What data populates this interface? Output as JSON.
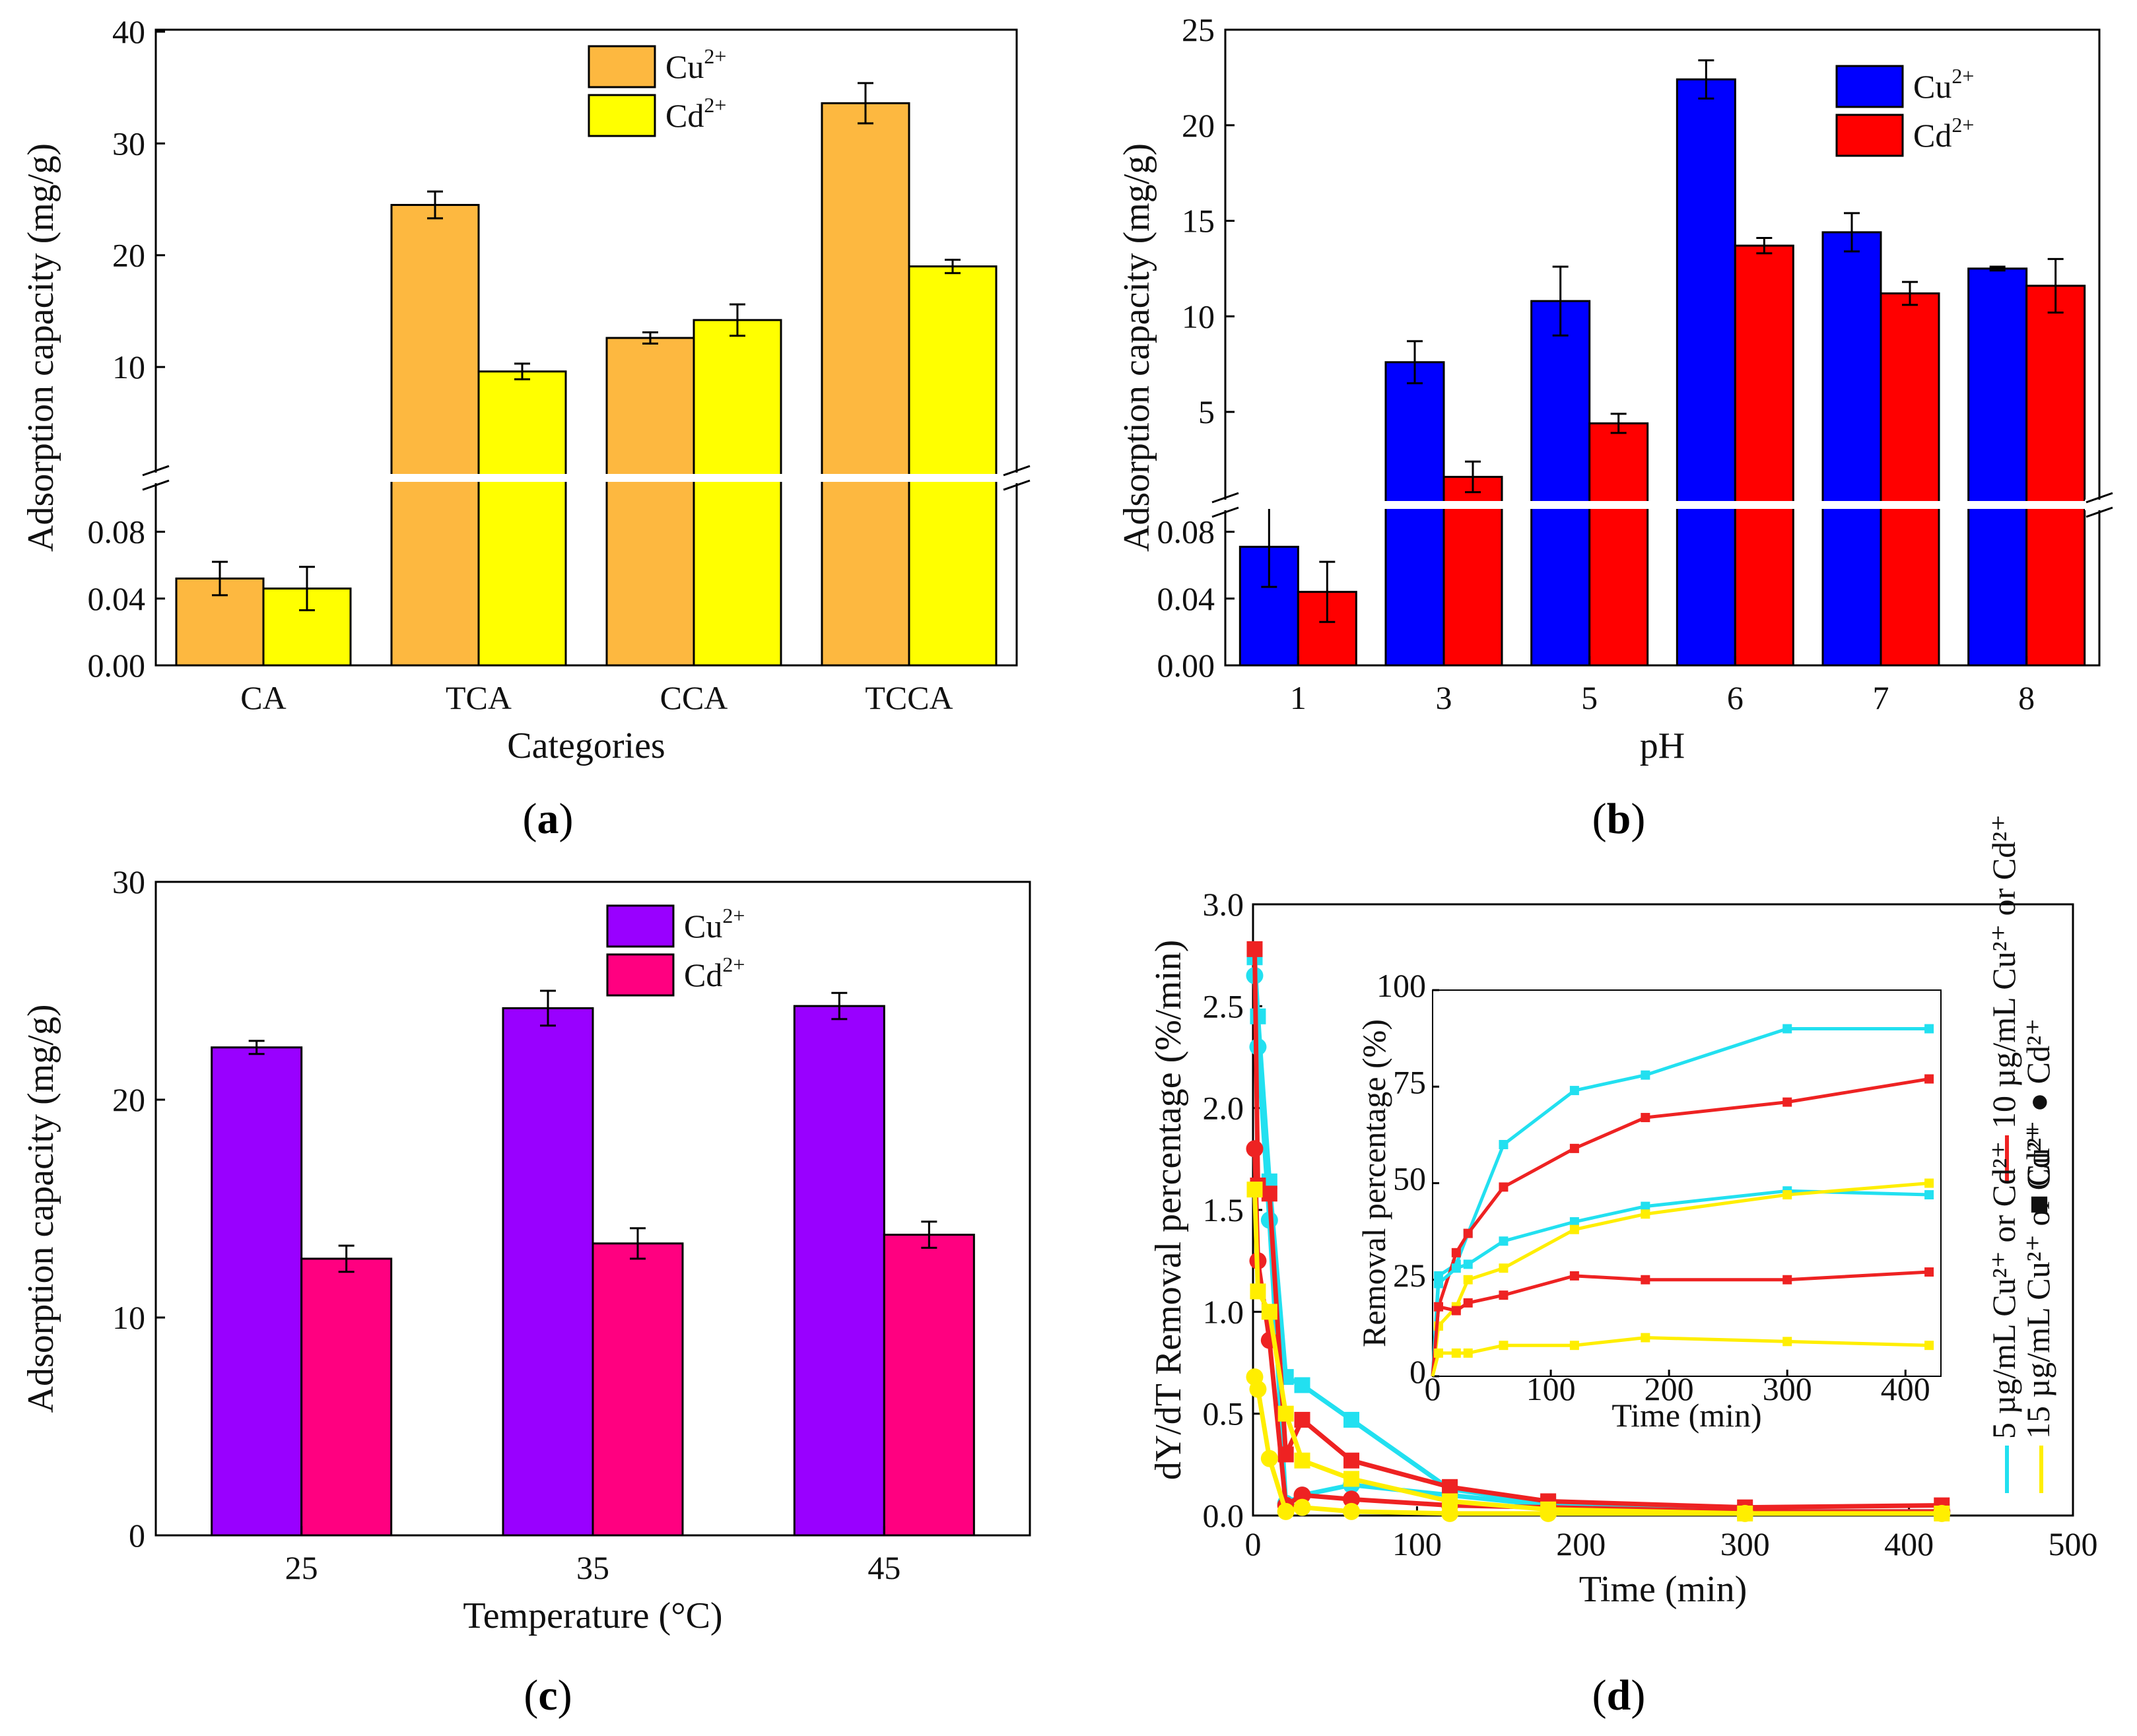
{
  "chart_data": [
    {
      "id": "a",
      "type": "bar",
      "panel_label": "a",
      "xlabel": "Categories",
      "ylabel": "Adsorption capacity (mg/g)",
      "categories": [
        "CA",
        "TCA",
        "CCA",
        "TCCA"
      ],
      "axis_break": true,
      "lower_range": [
        0,
        0.1
      ],
      "lower_ticks": [
        "0.00",
        "0.04",
        "0.08"
      ],
      "upper_range": [
        0,
        40
      ],
      "upper_ticks": [
        "10",
        "20",
        "30",
        "40"
      ],
      "legend": [
        {
          "ion": "Cu",
          "charge": "2+"
        },
        {
          "ion": "Cd",
          "charge": "2+"
        }
      ],
      "series": [
        {
          "name": "Cu2+",
          "color": "#FDB840",
          "values": [
            0.052,
            24.5,
            12.6,
            33.6
          ],
          "errors": [
            0.01,
            1.2,
            0.5,
            1.8
          ]
        },
        {
          "name": "Cd2+",
          "color": "#FFFF00",
          "values": [
            0.046,
            9.6,
            14.2,
            19.0
          ],
          "errors": [
            0.013,
            0.7,
            1.4,
            0.6
          ]
        }
      ]
    },
    {
      "id": "b",
      "type": "bar",
      "panel_label": "b",
      "xlabel": "pH",
      "ylabel": "Adsorption capacity (mg/g)",
      "categories": [
        "1",
        "3",
        "5",
        "6",
        "7",
        "8"
      ],
      "axis_break": true,
      "lower_range": [
        0,
        0.1
      ],
      "lower_ticks": [
        "0.00",
        "0.04",
        "0.08"
      ],
      "upper_range": [
        0,
        25
      ],
      "upper_ticks": [
        "5",
        "10",
        "15",
        "20",
        "25"
      ],
      "legend": [
        {
          "ion": "Cu",
          "charge": "2+"
        },
        {
          "ion": "Cd",
          "charge": "2+"
        }
      ],
      "series": [
        {
          "name": "Cu2+",
          "color": "#0000FF",
          "values": [
            0.071,
            7.6,
            10.8,
            22.4,
            14.4,
            12.5
          ],
          "errors": [
            0.024,
            1.1,
            1.8,
            1.0,
            1.0,
            0.1
          ]
        },
        {
          "name": "Cd2+",
          "color": "#FF0000",
          "values": [
            0.044,
            1.6,
            4.4,
            13.7,
            11.2,
            11.6
          ],
          "errors": [
            0.018,
            0.8,
            0.5,
            0.4,
            0.6,
            1.4
          ]
        }
      ]
    },
    {
      "id": "c",
      "type": "bar",
      "panel_label": "c",
      "xlabel": "Temperature (°C)",
      "ylabel": "Adsorption capacity (mg/g)",
      "categories": [
        "25",
        "35",
        "45"
      ],
      "ylim": [
        0,
        30
      ],
      "yticks": [
        "0",
        "10",
        "20",
        "30"
      ],
      "legend": [
        {
          "ion": "Cu",
          "charge": "2+"
        },
        {
          "ion": "Cd",
          "charge": "2+"
        }
      ],
      "series": [
        {
          "name": "Cu2+",
          "color": "#9900FF",
          "values": [
            22.4,
            24.2,
            24.3
          ],
          "errors": [
            0.3,
            0.8,
            0.6
          ]
        },
        {
          "name": "Cd2+",
          "color": "#FF0080",
          "values": [
            12.7,
            13.4,
            13.8
          ],
          "errors": [
            0.6,
            0.7,
            0.6
          ]
        }
      ]
    },
    {
      "id": "d",
      "type": "line",
      "panel_label": "d",
      "xlabel": "Time (min)",
      "ylabel": "dY/dT Removal percentage (%/min)",
      "xlim": [
        0,
        500
      ],
      "ylim": [
        0,
        3.0
      ],
      "xticks": [
        "0",
        "100",
        "200",
        "300",
        "400",
        "500"
      ],
      "yticks": [
        "0.0",
        "0.5",
        "1.0",
        "1.5",
        "2.0",
        "2.5",
        "3.0"
      ],
      "series": [
        {
          "name": "5 µg/mL Cu2+",
          "color": "#22E0F0",
          "marker": "square",
          "x": [
            1,
            3,
            10,
            20,
            30,
            60,
            120,
            180,
            300,
            420
          ],
          "y": [
            2.74,
            2.45,
            1.64,
            0.68,
            0.64,
            0.47,
            0.13,
            0.06,
            0.02,
            0.02
          ]
        },
        {
          "name": "5 µg/mL Cd2+",
          "color": "#22E0F0",
          "marker": "circle",
          "x": [
            1,
            3,
            10,
            20,
            30,
            60,
            120,
            180,
            300,
            420
          ],
          "y": [
            2.65,
            2.3,
            1.45,
            0.06,
            0.1,
            0.15,
            0.1,
            0.05,
            0.02,
            0.02
          ]
        },
        {
          "name": "10 µg/mL Cu2+",
          "color": "#EE2222",
          "marker": "square",
          "x": [
            1,
            3,
            10,
            20,
            30,
            60,
            120,
            180,
            300,
            420
          ],
          "y": [
            2.78,
            1.62,
            1.58,
            0.3,
            0.47,
            0.27,
            0.14,
            0.07,
            0.04,
            0.05
          ]
        },
        {
          "name": "10 µg/mL Cd2+",
          "color": "#EE2222",
          "marker": "circle",
          "x": [
            1,
            3,
            10,
            20,
            30,
            60,
            120,
            180,
            300,
            420
          ],
          "y": [
            1.8,
            1.25,
            0.86,
            0.05,
            0.1,
            0.08,
            0.05,
            0.04,
            0.02,
            0.02
          ]
        },
        {
          "name": "15 µg/mL Cu2+",
          "color": "#FFEE00",
          "marker": "square",
          "x": [
            1,
            3,
            10,
            20,
            30,
            60,
            120,
            180,
            300,
            420
          ],
          "y": [
            1.6,
            1.1,
            1.0,
            0.5,
            0.27,
            0.18,
            0.07,
            0.03,
            0.01,
            0.01
          ]
        },
        {
          "name": "15 µg/mL Cd2+",
          "color": "#FFEE00",
          "marker": "circle",
          "x": [
            1,
            3,
            10,
            20,
            30,
            60,
            120,
            180,
            300,
            420
          ],
          "y": [
            0.68,
            0.62,
            0.28,
            0.02,
            0.04,
            0.02,
            0.01,
            0.01,
            0.01,
            0.01
          ]
        }
      ],
      "inset": {
        "xlabel": "Time (min)",
        "ylabel": "Removal percentage (%)",
        "xlim": [
          0,
          430
        ],
        "ylim": [
          0,
          100
        ],
        "xticks": [
          "0",
          "100",
          "200",
          "300",
          "400"
        ],
        "yticks": [
          "0",
          "25",
          "50",
          "75",
          "100"
        ],
        "x": [
          0,
          5,
          20,
          30,
          60,
          120,
          180,
          300,
          420
        ],
        "series": [
          {
            "name": "5 µg/mL Cu2+",
            "color": "#22E0F0",
            "y": [
              0,
              26,
              29,
              37,
              60,
              74,
              78,
              90,
              90
            ]
          },
          {
            "name": "10 µg/mL Cu2+",
            "color": "#EE2222",
            "y": [
              0,
              18,
              32,
              37,
              49,
              59,
              67,
              71,
              77
            ]
          },
          {
            "name": "5 µg/mL Cd2+",
            "color": "#22E0F0",
            "y": [
              0,
              24,
              28,
              29,
              35,
              40,
              44,
              48,
              47
            ]
          },
          {
            "name": "15 µg/mL Cu2+",
            "color": "#FFEE00",
            "y": [
              0,
              13,
              18,
              25,
              28,
              38,
              42,
              47,
              50
            ]
          },
          {
            "name": "10 µg/mL Cd2+",
            "color": "#EE2222",
            "y": [
              0,
              18,
              17,
              19,
              21,
              26,
              25,
              25,
              27
            ]
          },
          {
            "name": "15 µg/mL Cd2+",
            "color": "#FFEE00",
            "y": [
              0,
              6,
              6,
              6,
              8,
              8,
              10,
              9,
              8
            ]
          }
        ]
      },
      "legend_vertical": [
        "5 µg/mL Cu²⁺ or Cd²⁺",
        "10 µg/mL Cu²⁺ or Cd²⁺",
        "15 µg/mL Cu²⁺ or Cd²⁺",
        "■ Cu²⁺ ● Cd²⁺"
      ]
    }
  ]
}
